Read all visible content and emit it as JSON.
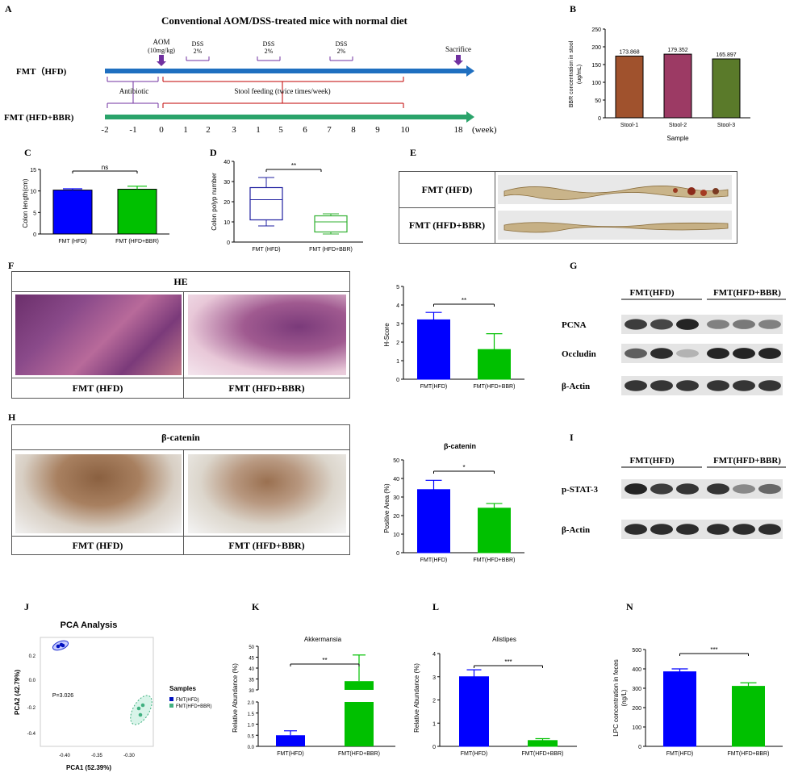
{
  "panels": {
    "A": {
      "letter": "A",
      "title": "Conventional AOM/DSS-treated mice with normal diet",
      "rows": [
        "FMT（HFD)",
        "FMT (HFD+BBR)"
      ],
      "aom": "AOM",
      "aom_dose": "(10mg/kg)",
      "dss": "DSS",
      "dss_pct": "2%",
      "sacrifice": "Sacrifice",
      "antibiotic": "Antibiotic",
      "stool": "Stool feeding (twice times/week)",
      "ticks": [
        "-2",
        "-1",
        "0",
        "1",
        "2",
        "3",
        "1",
        "5",
        "6",
        "7",
        "8",
        "9",
        "10",
        "18"
      ],
      "unit": "(week)"
    },
    "B": {
      "letter": "B",
      "ylabel": "BBR concentration in stool",
      "yunit": "(ug/mL)",
      "xlabel": "Sample"
    },
    "C": {
      "letter": "C",
      "ylabel": "Colon length(cm)",
      "sig": "ns"
    },
    "D": {
      "letter": "D",
      "ylabel": "Colon polyp number",
      "sig": "**"
    },
    "E": {
      "letter": "E",
      "rows": [
        "FMT (HFD)",
        "FMT (HFD+BBR)"
      ]
    },
    "F": {
      "letter": "F",
      "title": "HE",
      "left": "FMT (HFD)",
      "right": "FMT (HFD+BBR)",
      "ylabel": "H-Score",
      "sig": "**"
    },
    "G": {
      "letter": "G",
      "groups": [
        "FMT(HFD)",
        "FMT(HFD+BBR)"
      ],
      "proteins": [
        "PCNA",
        "Occludin",
        "β-Actin"
      ]
    },
    "H": {
      "letter": "H",
      "title": "β-catenin",
      "left": "FMT (HFD)",
      "right": "FMT (HFD+BBR)",
      "chart_title": "β-catenin",
      "ylabel": "Positive Area (%)",
      "sig": "*"
    },
    "I": {
      "letter": "I",
      "groups": [
        "FMT(HFD)",
        "FMT(HFD+BBR)"
      ],
      "proteins": [
        "p-STAT-3",
        "β-Actin"
      ]
    },
    "J": {
      "letter": "J",
      "title": "PCA Analysis",
      "xlabel": "PCA1 (52.39%)",
      "ylabel": "PCA2 (42.79%)",
      "pval": "P=3.026",
      "legend_title": "Samples",
      "legend": [
        "FMT(HFD)",
        "FMT(HFD+BBR)"
      ]
    },
    "K": {
      "letter": "K",
      "title": "Akkermansia",
      "ylabel": "Relative Abundance (%)",
      "sig": "**"
    },
    "L": {
      "letter": "L",
      "title": "Alistipes",
      "ylabel": "Relative Abundance (%)",
      "sig": "***"
    },
    "N": {
      "letter": "N",
      "ylabel": "LPC concentration in feces",
      "yunit": "(ng/L)",
      "sig": "***"
    }
  },
  "colors": {
    "blue": "#0000ff",
    "green": "#00c000",
    "arrow_blue": "#1f6fc0",
    "arrow_green": "#2aa36a",
    "purple": "#7030a0",
    "red": "#c00000",
    "stool1": "#a0522d",
    "stool2": "#9c3a64",
    "stool3": "#5a7a2a"
  },
  "chart_data": [
    {
      "id": "B",
      "type": "bar",
      "categories": [
        "Stool-1",
        "Stool-2",
        "Stool-3"
      ],
      "values": [
        173.868,
        179.352,
        165.897
      ],
      "data_labels": [
        "173.868",
        "179.352",
        "165.897"
      ],
      "ylim": [
        0,
        250
      ],
      "yticks": [
        "0",
        "50",
        "100",
        "150",
        "200",
        "250"
      ]
    },
    {
      "id": "C",
      "type": "bar",
      "categories": [
        "FMT (HFD)",
        "FMT (HFD+BBR)"
      ],
      "values": [
        10.2,
        10.4
      ],
      "errors": [
        0.3,
        0.7
      ],
      "ylim": [
        0,
        15
      ],
      "yticks": [
        "0",
        "5",
        "10",
        "15"
      ]
    },
    {
      "id": "D",
      "type": "box",
      "categories": [
        "FMT (HFD)",
        "FMT (HFD+BBR)"
      ],
      "boxes": [
        {
          "min": 8,
          "q1": 11,
          "median": 21,
          "q3": 27,
          "max": 32
        },
        {
          "min": 4,
          "q1": 5,
          "median": 10,
          "q3": 13,
          "max": 14
        }
      ],
      "ylim": [
        0,
        40
      ],
      "yticks": [
        "0",
        "10",
        "20",
        "30",
        "40"
      ]
    },
    {
      "id": "F",
      "type": "bar",
      "categories": [
        "FMT(HFD)",
        "FMT(HFD+BBR)"
      ],
      "values": [
        3.2,
        1.6
      ],
      "errors": [
        0.4,
        0.85
      ],
      "ylim": [
        0,
        5
      ],
      "yticks": [
        "0",
        "1",
        "2",
        "3",
        "4",
        "5"
      ]
    },
    {
      "id": "H",
      "type": "bar",
      "categories": [
        "FMT(HFD)",
        "FMT(HFD+BBR)"
      ],
      "values": [
        34,
        24
      ],
      "errors": [
        5,
        2.5
      ],
      "ylim": [
        0,
        50
      ],
      "yticks": [
        "0",
        "10",
        "20",
        "30",
        "40",
        "50"
      ]
    },
    {
      "id": "J",
      "type": "scatter",
      "xticks": [
        "-0.40",
        "-0.35",
        "-0.30"
      ],
      "yticks": [
        "0.2",
        "0.0",
        "-0.2",
        "-0.4"
      ]
    },
    {
      "id": "K",
      "type": "bar",
      "categories": [
        "FMT(HFD)",
        "FMT(HFD+BBR)"
      ],
      "values": [
        0.5,
        34
      ],
      "errors": [
        0.2,
        12
      ],
      "yticks_low": [
        "0.0",
        "0.5",
        "1.0",
        "1.5",
        "2.0"
      ],
      "yticks_high": [
        "30",
        "35",
        "40",
        "45",
        "50"
      ]
    },
    {
      "id": "L",
      "type": "bar",
      "categories": [
        "FMT(HFD)",
        "FMT(HFD+BBR)"
      ],
      "values": [
        3.0,
        0.25
      ],
      "errors": [
        0.3,
        0.08
      ],
      "ylim": [
        0,
        4
      ],
      "yticks": [
        "0",
        "1",
        "2",
        "3",
        "4"
      ]
    },
    {
      "id": "N",
      "type": "bar",
      "categories": [
        "FMT(HFD)",
        "FMT(HFD+BBR)"
      ],
      "values": [
        385,
        310
      ],
      "errors": [
        15,
        18
      ],
      "ylim": [
        0,
        500
      ],
      "yticks": [
        "0",
        "100",
        "200",
        "300",
        "400",
        "500"
      ]
    }
  ]
}
